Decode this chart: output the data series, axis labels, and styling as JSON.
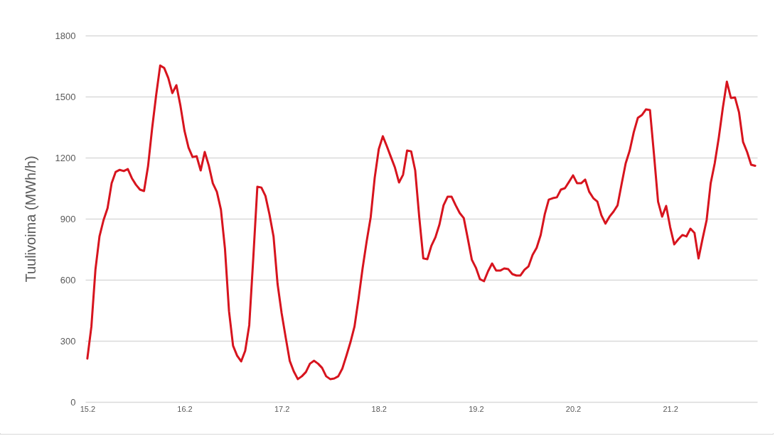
{
  "chart_data": {
    "type": "line",
    "ylabel": "Tuulivoima (MWh/h)",
    "categories": [
      "15.2",
      null,
      null,
      null,
      null,
      null,
      null,
      null,
      null,
      null,
      null,
      null,
      null,
      null,
      null,
      null,
      null,
      null,
      null,
      null,
      null,
      null,
      null,
      null,
      "16.2",
      null,
      null,
      null,
      null,
      null,
      null,
      null,
      null,
      null,
      null,
      null,
      null,
      null,
      null,
      null,
      null,
      null,
      null,
      null,
      null,
      null,
      null,
      null,
      "17.2",
      null,
      null,
      null,
      null,
      null,
      null,
      null,
      null,
      null,
      null,
      null,
      null,
      null,
      null,
      null,
      null,
      null,
      null,
      null,
      null,
      null,
      null,
      null,
      "18.2",
      null,
      null,
      null,
      null,
      null,
      null,
      null,
      null,
      null,
      null,
      null,
      null,
      null,
      null,
      null,
      null,
      null,
      null,
      null,
      null,
      null,
      null,
      null,
      "19.2",
      null,
      null,
      null,
      null,
      null,
      null,
      null,
      null,
      null,
      null,
      null,
      null,
      null,
      null,
      null,
      null,
      null,
      null,
      null,
      null,
      null,
      null,
      null,
      "20.2",
      null,
      null,
      null,
      null,
      null,
      null,
      null,
      null,
      null,
      null,
      null,
      null,
      null,
      null,
      null,
      null,
      null,
      null,
      null,
      null,
      null,
      null,
      null,
      "21.2",
      null,
      null,
      null,
      null,
      null,
      null,
      null,
      null,
      null,
      null,
      null,
      null,
      null,
      null,
      null,
      null,
      null,
      null,
      null,
      null,
      null
    ],
    "ylim": [
      0,
      1800
    ],
    "yticks": [
      0,
      300,
      600,
      900,
      1200,
      1500,
      1800
    ],
    "grid": "y",
    "series": [
      {
        "color": "#d7141e",
        "values": [
          213,
          370,
          650,
          813,
          893,
          952,
          1074,
          1130,
          1140,
          1134,
          1144,
          1099,
          1067,
          1043,
          1036,
          1158,
          1343,
          1507,
          1653,
          1640,
          1591,
          1517,
          1556,
          1455,
          1332,
          1249,
          1203,
          1207,
          1137,
          1228,
          1162,
          1074,
          1032,
          945,
          753,
          446,
          276,
          227,
          199,
          251,
          377,
          708,
          1057,
          1053,
          1012,
          921,
          813,
          579,
          436,
          317,
          202,
          150,
          112,
          126,
          147,
          188,
          202,
          188,
          167,
          126,
          112,
          115,
          126,
          164,
          227,
          293,
          370,
          506,
          656,
          788,
          907,
          1102,
          1242,
          1305,
          1256,
          1203,
          1151,
          1078,
          1116,
          1235,
          1231,
          1137,
          907,
          705,
          701,
          767,
          809,
          872,
          966,
          1008,
          1008,
          966,
          928,
          903,
          802,
          698,
          659,
          603,
          593,
          642,
          680,
          645,
          645,
          656,
          652,
          628,
          621,
          621,
          649,
          666,
          722,
          757,
          820,
          921,
          994,
          1001,
          1005,
          1043,
          1050,
          1081,
          1113,
          1074,
          1074,
          1092,
          1032,
          1001,
          984,
          917,
          876,
          910,
          935,
          966,
          1071,
          1172,
          1235,
          1325,
          1395,
          1409,
          1437,
          1434,
          1214,
          984,
          910,
          963,
          858,
          774,
          799,
          820,
          813,
          851,
          830,
          705,
          802,
          893,
          1074,
          1172,
          1298,
          1444,
          1573,
          1493,
          1496,
          1423,
          1277,
          1228,
          1165,
          1160
        ]
      }
    ]
  }
}
